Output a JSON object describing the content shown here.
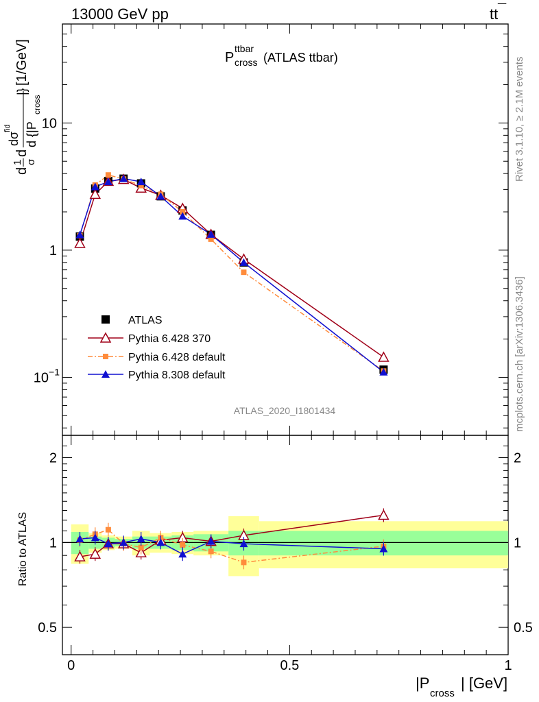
{
  "header": {
    "left": "13000 GeV pp",
    "right_main": "tt",
    "right_bar": "¯"
  },
  "plot_title": {
    "main": "P",
    "sup": "ttbar",
    "sub": "cross",
    "tail": " (ATLAS ttbar)"
  },
  "side_labels": {
    "rivet": "Rivet 3.1.10, ≥ 2.1M events",
    "mcplots": "mcplots.cern.ch [arXiv:1306.3436]"
  },
  "watermark": "ATLAS_2020_I1801434",
  "ylabel_top": {
    "d1": "d",
    "one": "1",
    "sigma_bottom": "σ",
    "d2": "d",
    "numerator": "dσ",
    "numerator_sup": "fid",
    "denominator": "d {|P",
    "denominator_sub": "cross",
    "denominator_close": "|}",
    "unit": " [1/GeV]"
  },
  "ylabel_bottom": "Ratio to ATLAS",
  "xlabel": {
    "main": "|P",
    "sub": "cross",
    "tail": "| [GeV]"
  },
  "top_ticks": {
    "labels": [
      "10",
      "1",
      "10"
    ],
    "sup_labels": [
      "",
      "",
      "−1"
    ],
    "values": [
      10,
      1,
      0.1
    ]
  },
  "bottom_ticks": {
    "labels": [
      "2",
      "1",
      "0.5"
    ],
    "values": [
      2,
      1,
      0.5
    ]
  },
  "x_ticks": {
    "labels": [
      "0",
      "0.5",
      "1"
    ],
    "values": [
      0,
      0.5,
      1
    ]
  },
  "legend": [
    {
      "label": "ATLAS"
    },
    {
      "label": "Pythia 6.428 370"
    },
    {
      "label": "Pythia 6.428 default"
    },
    {
      "label": "Pythia 8.308 default"
    }
  ],
  "colors": {
    "atlas": "#000000",
    "py6_370": "#a00018",
    "py6_default": "#ff8c3c",
    "py8": "#1010d0",
    "band_outer": "#ffff99",
    "band_inner": "#99ff99"
  },
  "chart_data": {
    "type": "line",
    "x": [
      0.02,
      0.055,
      0.085,
      0.12,
      0.16,
      0.205,
      0.255,
      0.32,
      0.395,
      0.715
    ],
    "bin_edges": [
      0,
      0.04,
      0.07,
      0.1,
      0.14,
      0.18,
      0.23,
      0.28,
      0.36,
      0.43,
      1.0
    ],
    "xlim": [
      -0.02,
      1.0
    ],
    "ylim_top": [
      0.035,
      60
    ],
    "ylog_top": true,
    "ylim_ratio": [
      0.4,
      2.4
    ],
    "ylog_ratio": true,
    "series": [
      {
        "name": "ATLAS",
        "values": [
          1.28,
          3.05,
          3.5,
          3.65,
          3.35,
          2.65,
          2.05,
          1.32,
          0.8,
          0.115
        ]
      },
      {
        "name": "Pythia 6.428 370",
        "values": [
          1.13,
          2.75,
          3.48,
          3.6,
          3.08,
          2.7,
          2.13,
          1.33,
          0.85,
          0.144
        ]
      },
      {
        "name": "Pythia 6.428 default",
        "values": [
          1.3,
          3.25,
          3.9,
          3.62,
          3.22,
          2.75,
          2.0,
          1.22,
          0.67,
          0.112
        ]
      },
      {
        "name": "Pythia 8.308 default",
        "values": [
          1.32,
          3.15,
          3.45,
          3.65,
          3.45,
          2.65,
          1.85,
          1.33,
          0.8,
          0.11
        ]
      }
    ],
    "ratio": [
      {
        "name": "Pythia 6.428 370",
        "values": [
          0.89,
          0.91,
          0.99,
          0.99,
          0.92,
          1.02,
          1.04,
          1.01,
          1.06,
          1.25
        ]
      },
      {
        "name": "Pythia 6.428 default",
        "values": [
          1.02,
          1.07,
          1.11,
          0.99,
          0.96,
          1.04,
          0.98,
          0.93,
          0.85,
          0.97
        ]
      },
      {
        "name": "Pythia 8.308 default",
        "values": [
          1.03,
          1.04,
          0.99,
          1.0,
          1.03,
          1.0,
          0.91,
          1.01,
          0.99,
          0.95
        ]
      }
    ],
    "ratio_band_inner": [
      0.09,
      0.05,
      0.04,
      0.03,
      0.05,
      0.05,
      0.06,
      0.07,
      0.1,
      0.1
    ],
    "ratio_band_outer": [
      0.16,
      0.08,
      0.06,
      0.05,
      0.1,
      0.08,
      0.09,
      0.1,
      0.24,
      0.19
    ]
  }
}
